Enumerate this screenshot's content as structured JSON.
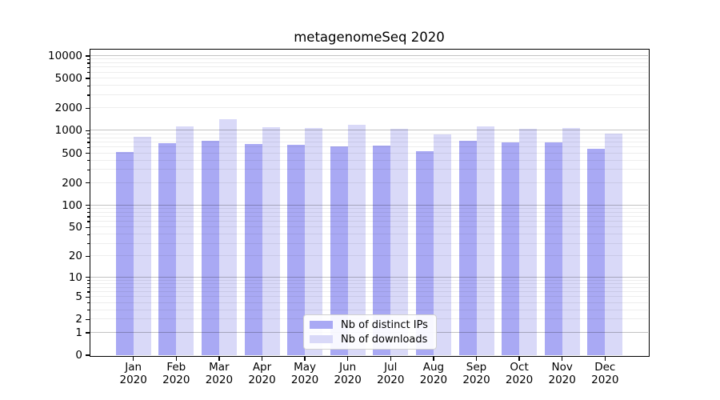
{
  "chart_data": {
    "type": "bar",
    "title": "metagenomeSeq 2020",
    "categories": [
      "Jan",
      "Feb",
      "Mar",
      "Apr",
      "May",
      "Jun",
      "Jul",
      "Aug",
      "Sep",
      "Oct",
      "Nov",
      "Dec"
    ],
    "x_year": "2020",
    "yscale": "log10(1+x)",
    "ylim": [
      0,
      11800
    ],
    "y_ticks": [
      0,
      1,
      2,
      5,
      10,
      20,
      50,
      100,
      200,
      500,
      1000,
      2000,
      5000,
      10000
    ],
    "grid": true,
    "legend_position": "lower-center-inside",
    "series": [
      {
        "name": "Nb of distinct IPs",
        "color": "#a9a9f4",
        "values": [
          520,
          690,
          740,
          660,
          650,
          615,
          640,
          535,
          735,
          695,
          700,
          575
        ]
      },
      {
        "name": "Nb of downloads",
        "color": "#d9d9f8",
        "values": [
          840,
          1150,
          1430,
          1110,
          1090,
          1200,
          1070,
          900,
          1140,
          1055,
          1090,
          925
        ]
      }
    ]
  }
}
